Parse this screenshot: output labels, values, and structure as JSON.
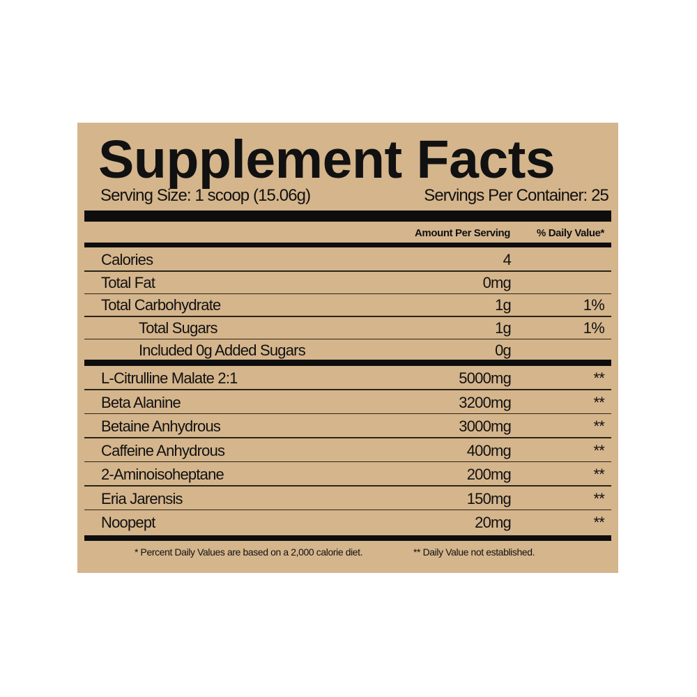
{
  "label": {
    "title": "Supplement Facts",
    "serving_size": "Serving Size: 1 scoop (15.06g)",
    "servings_per_container": "Servings Per Container: 25",
    "col_amount": "Amount Per Serving",
    "col_dv": "% Daily Value*",
    "nutrients": [
      {
        "name": "Calories",
        "amount": "4",
        "dv": ""
      },
      {
        "name": "Total Fat",
        "amount": "0mg",
        "dv": ""
      },
      {
        "name": "Total Carbohydrate",
        "amount": "1g",
        "dv": "1%"
      },
      {
        "name": "Total Sugars",
        "amount": "1g",
        "dv": "1%"
      },
      {
        "name": "Included 0g Added Sugars",
        "amount": "0g",
        "dv": ""
      }
    ],
    "ingredients": [
      {
        "name": "L-Citrulline Malate 2:1",
        "amount": "5000mg",
        "dv": "**"
      },
      {
        "name": "Beta Alanine",
        "amount": "3200mg",
        "dv": "**"
      },
      {
        "name": "Betaine Anhydrous",
        "amount": "3000mg",
        "dv": "**"
      },
      {
        "name": "Caffeine Anhydrous",
        "amount": "400mg",
        "dv": "**"
      },
      {
        "name": "2-Aminoisoheptane",
        "amount": "200mg",
        "dv": "**"
      },
      {
        "name": "Eria Jarensis",
        "amount": "150mg",
        "dv": "**"
      },
      {
        "name": "Noopept",
        "amount": "20mg",
        "dv": "**"
      }
    ],
    "footnote_1": "* Percent Daily Values are based on a 2,000 calorie diet.",
    "footnote_2": "** Daily Value not established.",
    "background_color": "#d5b58c"
  }
}
